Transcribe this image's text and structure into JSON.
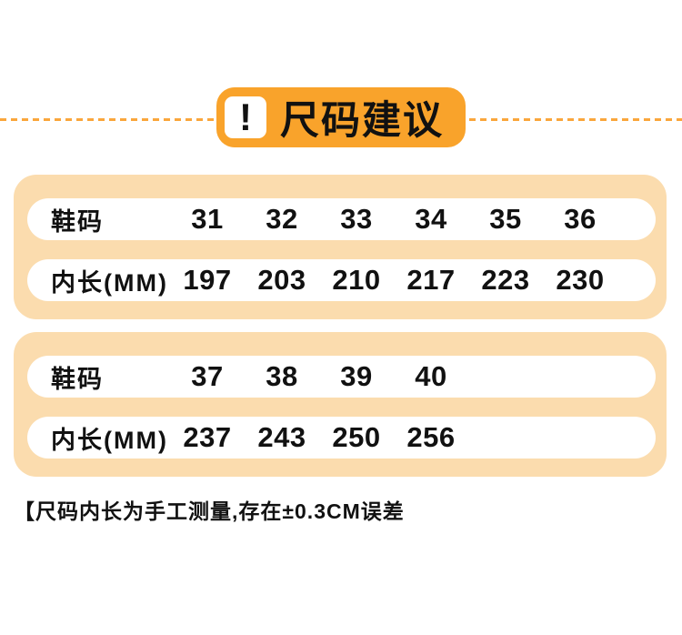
{
  "header": {
    "icon": "!",
    "title": "尺码建议"
  },
  "colors": {
    "accent_orange": "#F9A32B",
    "divider_orange": "#FAA63C",
    "panel_peach": "#FBDCAE",
    "text": "#111111",
    "row_white": "#FFFFFF"
  },
  "chart_data": [
    {
      "type": "table",
      "rows": [
        {
          "label": "鞋码",
          "values": [
            "31",
            "32",
            "33",
            "34",
            "35",
            "36"
          ]
        },
        {
          "label": "内长(MM)",
          "values": [
            "197",
            "203",
            "210",
            "217",
            "223",
            "230"
          ]
        }
      ]
    },
    {
      "type": "table",
      "rows": [
        {
          "label": "鞋码",
          "values": [
            "37",
            "38",
            "39",
            "40"
          ]
        },
        {
          "label": "内长(MM)",
          "values": [
            "237",
            "243",
            "250",
            "256"
          ]
        }
      ]
    }
  ],
  "footnote": "【尺码内长为手工测量,存在±0.3CM误差"
}
